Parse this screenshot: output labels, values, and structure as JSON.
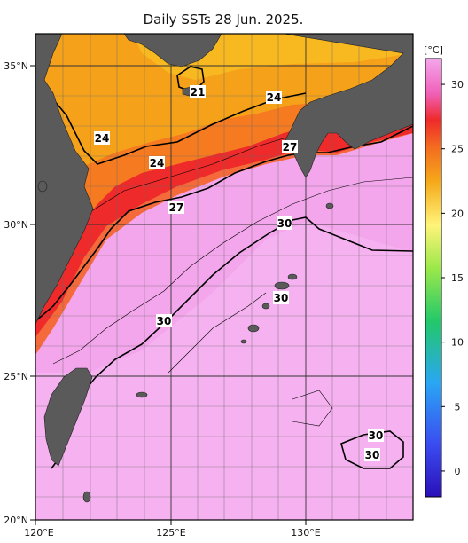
{
  "title": "Daily SSTs 28 Jun. 2025.",
  "colorbar": {
    "unit": "[°C]",
    "ticks": [
      "0",
      "5",
      "10",
      "15",
      "20",
      "25",
      "30"
    ],
    "range": [
      -2,
      32
    ]
  },
  "axes": {
    "x_ticks": [
      "120°E",
      "125°E",
      "130°E"
    ],
    "y_ticks": [
      "35°N",
      "30°N",
      "25°N",
      "20°N"
    ],
    "lon_range": [
      120,
      134
    ],
    "lat_range": [
      20,
      36
    ]
  },
  "contour_labels": [
    "21",
    "24",
    "24",
    "24",
    "27",
    "27",
    "30",
    "30",
    "30",
    "30",
    "30"
  ],
  "colors": {
    "land": "#5a5a5a",
    "warm_pink": "#f2a2ea",
    "red": "#ee2a2a",
    "orange": "#f5a21a"
  }
}
